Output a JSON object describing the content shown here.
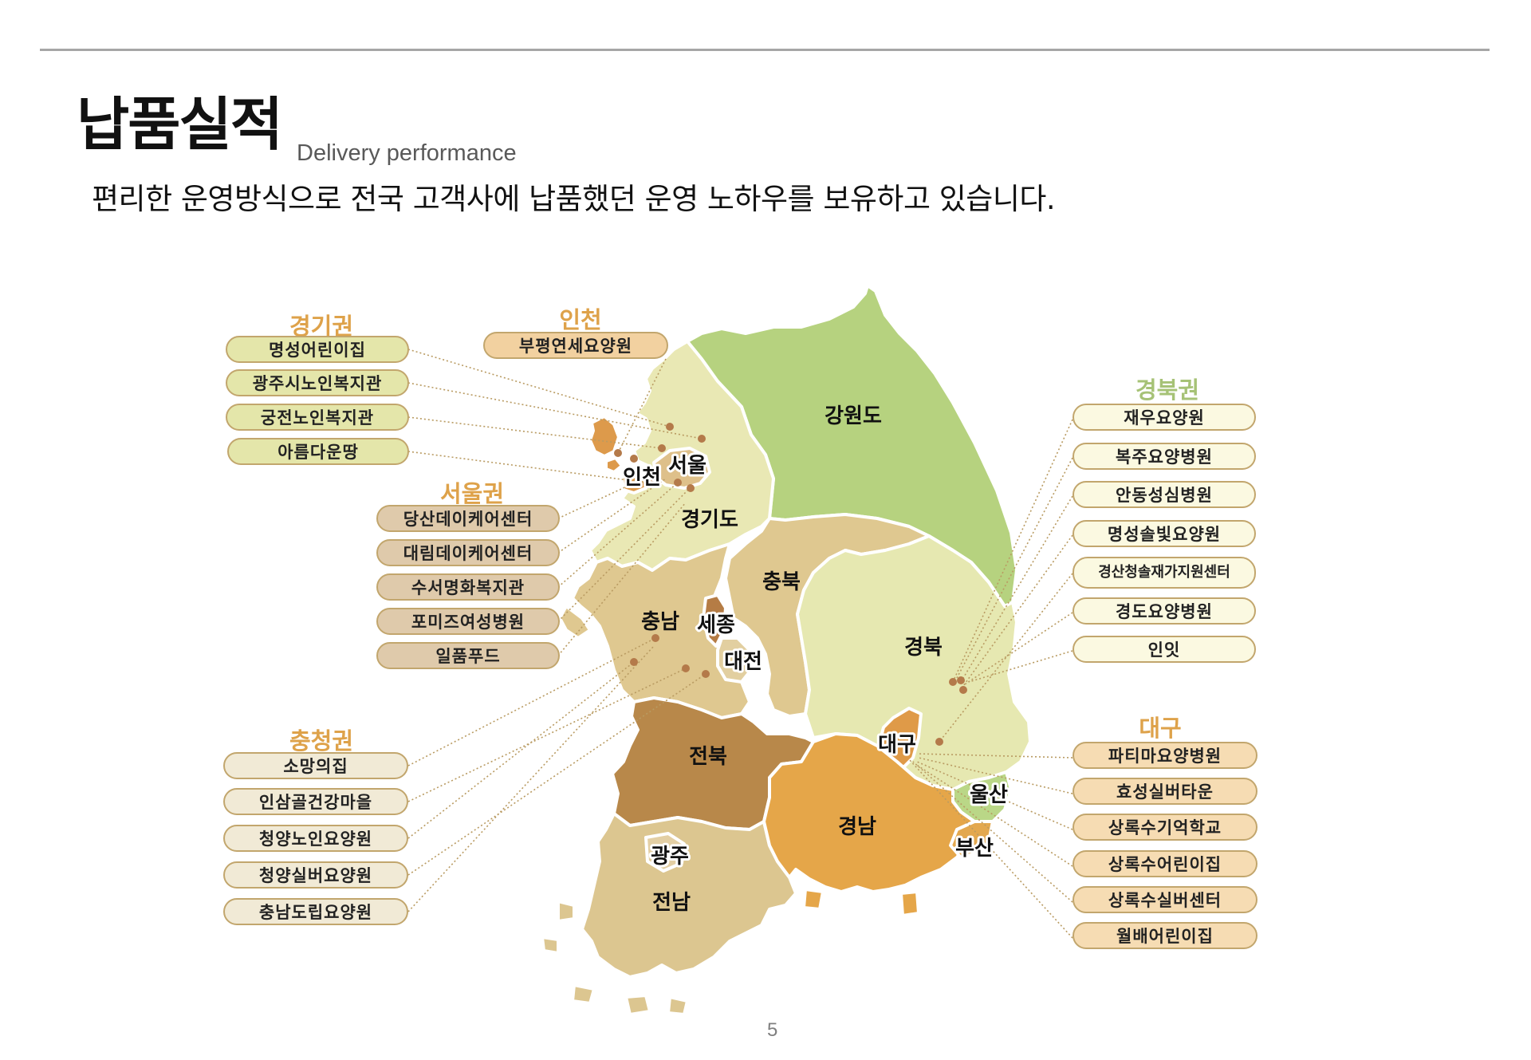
{
  "header": {
    "title": "납품실적",
    "subtitle_en": "Delivery performance",
    "lead": "편리한 운영방식으로 전국 고객사에 납품했던 운영 노하우를 보유하고 있습니다."
  },
  "page_number": "5",
  "groups": {
    "gyeonggi": {
      "title": "경기권",
      "items": [
        "명성어린이집",
        "광주시노인복지관",
        "궁전노인복지관",
        "아름다운땅"
      ]
    },
    "incheon": {
      "title": "인천",
      "items": [
        "부평연세요양원"
      ]
    },
    "seoul": {
      "title": "서울권",
      "items": [
        "당산데이케어센터",
        "대림데이케어센터",
        "수서명화복지관",
        "포미즈여성병원",
        "일품푸드"
      ]
    },
    "chungcheong": {
      "title": "충청권",
      "items": [
        "소망의집",
        "인삼골건강마을",
        "청양노인요양원",
        "청양실버요양원",
        "충남도립요양원"
      ]
    },
    "gyeongbuk": {
      "title": "경북권",
      "items": [
        "재우요양원",
        "복주요양병원",
        "안동성심병원",
        "명성솔빛요양원",
        "경산청솔재가지원센터",
        "경도요양병원",
        "인잇"
      ]
    },
    "daegu": {
      "title": "대구",
      "items": [
        "파티마요양병원",
        "효성실버타운",
        "상록수기억학교",
        "상록수어린이집",
        "상록수실버센터",
        "월배어린이집"
      ]
    }
  },
  "regions": {
    "gangwon": "강원도",
    "gyeonggi": "경기도",
    "seoul": "서울",
    "incheon": "인천",
    "chungbuk": "충북",
    "chungnam": "충남",
    "sejong": "세종",
    "daejeon": "대전",
    "gyeongbuk": "경북",
    "daegu": "대구",
    "ulsan": "울산",
    "busan": "부산",
    "jeonbuk": "전북",
    "jeonnam": "전남",
    "gwangju": "광주",
    "gyeongnam": "경남"
  },
  "colors": {
    "gangwon": "#b6d27f",
    "gyeonggi": "#e9e8b4",
    "seoul": "#dec08a",
    "incheon": "#dd9a4b",
    "chungbuk": "#dfc890",
    "chungnam": "#dfc890",
    "sejong": "#b57c45",
    "daejeon": "#e2cfa0",
    "gyeongbuk": "#e6e8b1",
    "daegu": "#df9a48",
    "ulsan": "#bad787",
    "busan": "#e3a84f",
    "jeonbuk": "#b8884a",
    "jeonnam": "#dcc690",
    "gwangju": "#e3cfa4",
    "gyeongnam": "#e5a649",
    "header_orange": "#dea24a",
    "header_green": "#a6c276",
    "leader_line": "#b99b62"
  }
}
